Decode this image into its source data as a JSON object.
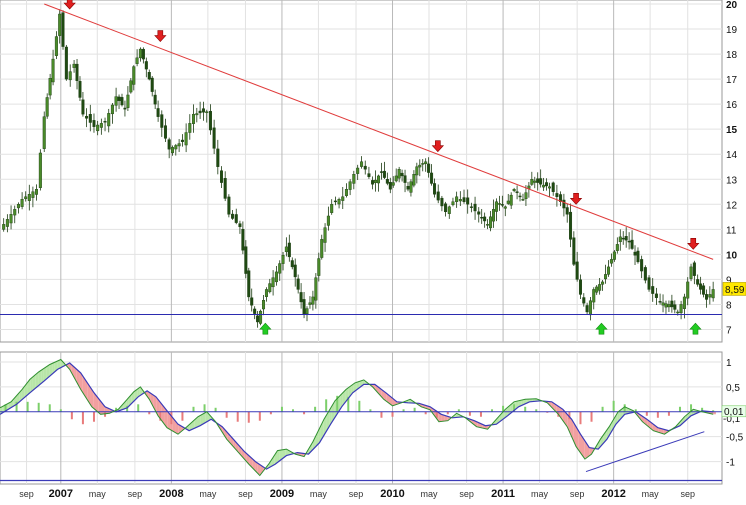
{
  "chart_data": [
    {
      "type": "candlestick",
      "panel": "price",
      "ylim": [
        6.5,
        20
      ],
      "y_ticks": [
        "7",
        "8",
        "9",
        "10",
        "11",
        "12",
        "13",
        "14",
        "15",
        "16",
        "17",
        "18",
        "19",
        "20"
      ],
      "y_ticks_bold": [
        "10",
        "15",
        "20"
      ],
      "x_labels": [
        {
          "t": 2006.69,
          "label": "sep",
          "year": false
        },
        {
          "t": 2007.0,
          "label": "2007",
          "year": true
        },
        {
          "t": 2007.33,
          "label": "may",
          "year": false
        },
        {
          "t": 2007.67,
          "label": "sep",
          "year": false
        },
        {
          "t": 2008.0,
          "label": "2008",
          "year": true
        },
        {
          "t": 2008.33,
          "label": "may",
          "year": false
        },
        {
          "t": 2008.67,
          "label": "sep",
          "year": false
        },
        {
          "t": 2009.0,
          "label": "2009",
          "year": true
        },
        {
          "t": 2009.33,
          "label": "may",
          "year": false
        },
        {
          "t": 2009.67,
          "label": "sep",
          "year": false
        },
        {
          "t": 2010.0,
          "label": "2010",
          "year": true
        },
        {
          "t": 2010.33,
          "label": "may",
          "year": false
        },
        {
          "t": 2010.67,
          "label": "sep",
          "year": false
        },
        {
          "t": 2011.0,
          "label": "2011",
          "year": true
        },
        {
          "t": 2011.33,
          "label": "may",
          "year": false
        },
        {
          "t": 2011.67,
          "label": "sep",
          "year": false
        },
        {
          "t": 2012.0,
          "label": "2012",
          "year": true
        },
        {
          "t": 2012.33,
          "label": "may",
          "year": false
        },
        {
          "t": 2012.67,
          "label": "sep",
          "year": false
        }
      ],
      "x_range": [
        2006.45,
        2012.98
      ],
      "price_path": [
        [
          2006.45,
          11.0
        ],
        [
          2006.55,
          11.6
        ],
        [
          2006.65,
          12.2
        ],
        [
          2006.78,
          12.6
        ],
        [
          2006.85,
          15.5
        ],
        [
          2006.93,
          17.8
        ],
        [
          2006.99,
          19.6
        ],
        [
          2007.05,
          17.0
        ],
        [
          2007.12,
          17.6
        ],
        [
          2007.2,
          15.6
        ],
        [
          2007.3,
          15.1
        ],
        [
          2007.4,
          15.3
        ],
        [
          2007.5,
          16.3
        ],
        [
          2007.58,
          15.8
        ],
        [
          2007.66,
          17.5
        ],
        [
          2007.72,
          18.2
        ],
        [
          2007.8,
          17.0
        ],
        [
          2007.88,
          15.5
        ],
        [
          2007.98,
          14.2
        ],
        [
          2008.1,
          14.5
        ],
        [
          2008.2,
          15.6
        ],
        [
          2008.32,
          15.7
        ],
        [
          2008.42,
          13.5
        ],
        [
          2008.52,
          11.6
        ],
        [
          2008.62,
          11.1
        ],
        [
          2008.7,
          8.3
        ],
        [
          2008.78,
          7.3
        ],
        [
          2008.86,
          8.6
        ],
        [
          2008.95,
          9.3
        ],
        [
          2009.04,
          10.3
        ],
        [
          2009.12,
          9.1
        ],
        [
          2009.2,
          7.6
        ],
        [
          2009.28,
          8.3
        ],
        [
          2009.36,
          10.6
        ],
        [
          2009.45,
          12.0
        ],
        [
          2009.55,
          12.3
        ],
        [
          2009.65,
          13.2
        ],
        [
          2009.72,
          13.7
        ],
        [
          2009.82,
          12.8
        ],
        [
          2009.9,
          13.3
        ],
        [
          2009.98,
          12.6
        ],
        [
          2010.06,
          13.4
        ],
        [
          2010.14,
          12.6
        ],
        [
          2010.22,
          13.5
        ],
        [
          2010.3,
          13.7
        ],
        [
          2010.38,
          12.4
        ],
        [
          2010.48,
          11.7
        ],
        [
          2010.58,
          12.3
        ],
        [
          2010.68,
          12.0
        ],
        [
          2010.78,
          11.6
        ],
        [
          2010.86,
          11.2
        ],
        [
          2010.94,
          12.1
        ],
        [
          2011.02,
          11.9
        ],
        [
          2011.1,
          12.6
        ],
        [
          2011.18,
          12.2
        ],
        [
          2011.26,
          13.0
        ],
        [
          2011.34,
          12.8
        ],
        [
          2011.42,
          12.7
        ],
        [
          2011.52,
          12.1
        ],
        [
          2011.58,
          11.6
        ],
        [
          2011.64,
          9.6
        ],
        [
          2011.7,
          8.4
        ],
        [
          2011.76,
          7.7
        ],
        [
          2011.82,
          8.6
        ],
        [
          2011.9,
          8.9
        ],
        [
          2011.98,
          9.8
        ],
        [
          2012.06,
          10.7
        ],
        [
          2012.14,
          10.5
        ],
        [
          2012.22,
          9.7
        ],
        [
          2012.32,
          8.6
        ],
        [
          2012.42,
          8.1
        ],
        [
          2012.5,
          8.0
        ],
        [
          2012.58,
          7.7
        ],
        [
          2012.64,
          8.3
        ],
        [
          2012.7,
          9.5
        ],
        [
          2012.76,
          8.8
        ],
        [
          2012.84,
          8.2
        ],
        [
          2012.9,
          8.6
        ]
      ],
      "last_value_label": "8,59",
      "resistance_line": {
        "from": [
          2006.85,
          20.0
        ],
        "to": [
          2012.9,
          9.8
        ],
        "color": "#e03c3c"
      },
      "support_line": {
        "y": 7.6,
        "color": "#2b2bb0"
      },
      "down_arrows": [
        {
          "t": 2007.08,
          "y": 20.0
        },
        {
          "t": 2007.9,
          "y": 18.7
        },
        {
          "t": 2010.41,
          "y": 14.3
        },
        {
          "t": 2011.66,
          "y": 12.2
        },
        {
          "t": 2012.72,
          "y": 10.4
        }
      ],
      "up_arrows": [
        {
          "t": 2008.85,
          "y": 7.05
        },
        {
          "t": 2011.89,
          "y": 7.05
        },
        {
          "t": 2012.74,
          "y": 7.05
        }
      ],
      "candle_up_color": "#4a8a2a",
      "candle_down_color": "#1f4a12",
      "grid": true
    },
    {
      "type": "area",
      "panel": "oscillator",
      "ylim": [
        -1.45,
        1.2
      ],
      "y_ticks": [
        "1",
        "0,5",
        "-0,5",
        "-1"
      ],
      "zero_label": "0,01",
      "zero_label_back": "-0,1",
      "fast_line": [
        [
          2006.45,
          0.08
        ],
        [
          2006.55,
          0.2
        ],
        [
          2006.65,
          0.45
        ],
        [
          2006.72,
          0.65
        ],
        [
          2006.8,
          0.8
        ],
        [
          2006.9,
          0.95
        ],
        [
          2007.0,
          1.05
        ],
        [
          2007.08,
          0.85
        ],
        [
          2007.18,
          0.45
        ],
        [
          2007.28,
          0.1
        ],
        [
          2007.36,
          -0.05
        ],
        [
          2007.44,
          -0.03
        ],
        [
          2007.52,
          0.05
        ],
        [
          2007.6,
          0.25
        ],
        [
          2007.66,
          0.4
        ],
        [
          2007.72,
          0.5
        ],
        [
          2007.8,
          0.25
        ],
        [
          2007.88,
          -0.08
        ],
        [
          2007.96,
          -0.32
        ],
        [
          2008.06,
          -0.45
        ],
        [
          2008.14,
          -0.3
        ],
        [
          2008.24,
          -0.1
        ],
        [
          2008.32,
          0.0
        ],
        [
          2008.4,
          -0.2
        ],
        [
          2008.5,
          -0.55
        ],
        [
          2008.6,
          -0.8
        ],
        [
          2008.7,
          -1.05
        ],
        [
          2008.8,
          -1.28
        ],
        [
          2008.88,
          -1.05
        ],
        [
          2008.96,
          -0.78
        ],
        [
          2009.04,
          -0.75
        ],
        [
          2009.12,
          -0.85
        ],
        [
          2009.2,
          -0.9
        ],
        [
          2009.28,
          -0.6
        ],
        [
          2009.38,
          -0.15
        ],
        [
          2009.48,
          0.22
        ],
        [
          2009.58,
          0.45
        ],
        [
          2009.66,
          0.58
        ],
        [
          2009.74,
          0.64
        ],
        [
          2009.82,
          0.5
        ],
        [
          2009.92,
          0.25
        ],
        [
          2010.0,
          0.12
        ],
        [
          2010.08,
          0.18
        ],
        [
          2010.16,
          0.25
        ],
        [
          2010.26,
          0.1
        ],
        [
          2010.34,
          0.04
        ],
        [
          2010.42,
          -0.2
        ],
        [
          2010.5,
          -0.18
        ],
        [
          2010.58,
          -0.03
        ],
        [
          2010.66,
          -0.12
        ],
        [
          2010.76,
          -0.3
        ],
        [
          2010.86,
          -0.35
        ],
        [
          2010.94,
          -0.15
        ],
        [
          2011.02,
          0.05
        ],
        [
          2011.1,
          0.2
        ],
        [
          2011.2,
          0.25
        ],
        [
          2011.3,
          0.26
        ],
        [
          2011.4,
          0.18
        ],
        [
          2011.5,
          -0.05
        ],
        [
          2011.58,
          -0.3
        ],
        [
          2011.66,
          -0.7
        ],
        [
          2011.74,
          -0.95
        ],
        [
          2011.8,
          -0.85
        ],
        [
          2011.88,
          -0.55
        ],
        [
          2011.96,
          -0.3
        ],
        [
          2012.04,
          0.0
        ],
        [
          2012.1,
          0.1
        ],
        [
          2012.18,
          0.02
        ],
        [
          2012.26,
          -0.2
        ],
        [
          2012.36,
          -0.38
        ],
        [
          2012.46,
          -0.45
        ],
        [
          2012.56,
          -0.3
        ],
        [
          2012.64,
          -0.1
        ],
        [
          2012.72,
          0.05
        ],
        [
          2012.8,
          0.0
        ],
        [
          2012.9,
          -0.05
        ]
      ],
      "slow_line": [
        [
          2006.45,
          -0.05
        ],
        [
          2006.6,
          0.15
        ],
        [
          2006.72,
          0.38
        ],
        [
          2006.85,
          0.62
        ],
        [
          2006.97,
          0.85
        ],
        [
          2007.08,
          0.98
        ],
        [
          2007.18,
          0.78
        ],
        [
          2007.3,
          0.38
        ],
        [
          2007.4,
          0.1
        ],
        [
          2007.5,
          0.0
        ],
        [
          2007.6,
          0.08
        ],
        [
          2007.7,
          0.3
        ],
        [
          2007.78,
          0.42
        ],
        [
          2007.86,
          0.3
        ],
        [
          2007.96,
          0.02
        ],
        [
          2008.06,
          -0.25
        ],
        [
          2008.16,
          -0.38
        ],
        [
          2008.26,
          -0.28
        ],
        [
          2008.36,
          -0.15
        ],
        [
          2008.46,
          -0.3
        ],
        [
          2008.56,
          -0.55
        ],
        [
          2008.66,
          -0.8
        ],
        [
          2008.76,
          -1.0
        ],
        [
          2008.86,
          -1.15
        ],
        [
          2008.94,
          -1.05
        ],
        [
          2009.04,
          -0.88
        ],
        [
          2009.14,
          -0.82
        ],
        [
          2009.24,
          -0.85
        ],
        [
          2009.34,
          -0.62
        ],
        [
          2009.44,
          -0.25
        ],
        [
          2009.54,
          0.1
        ],
        [
          2009.64,
          0.38
        ],
        [
          2009.74,
          0.55
        ],
        [
          2009.84,
          0.55
        ],
        [
          2009.94,
          0.38
        ],
        [
          2010.04,
          0.2
        ],
        [
          2010.14,
          0.18
        ],
        [
          2010.24,
          0.17
        ],
        [
          2010.34,
          0.1
        ],
        [
          2010.44,
          -0.05
        ],
        [
          2010.54,
          -0.12
        ],
        [
          2010.64,
          -0.1
        ],
        [
          2010.74,
          -0.18
        ],
        [
          2010.84,
          -0.28
        ],
        [
          2010.94,
          -0.25
        ],
        [
          2011.04,
          -0.08
        ],
        [
          2011.14,
          0.1
        ],
        [
          2011.24,
          0.2
        ],
        [
          2011.34,
          0.22
        ],
        [
          2011.44,
          0.2
        ],
        [
          2011.54,
          0.05
        ],
        [
          2011.62,
          -0.15
        ],
        [
          2011.7,
          -0.45
        ],
        [
          2011.78,
          -0.72
        ],
        [
          2011.86,
          -0.75
        ],
        [
          2011.94,
          -0.55
        ],
        [
          2012.02,
          -0.25
        ],
        [
          2012.1,
          -0.05
        ],
        [
          2012.2,
          0.0
        ],
        [
          2012.3,
          -0.15
        ],
        [
          2012.4,
          -0.32
        ],
        [
          2012.5,
          -0.38
        ],
        [
          2012.6,
          -0.28
        ],
        [
          2012.7,
          -0.08
        ],
        [
          2012.8,
          0.02
        ],
        [
          2012.9,
          0.0
        ]
      ],
      "histogram": [
        [
          2006.5,
          0.15
        ],
        [
          2006.6,
          0.2
        ],
        [
          2006.7,
          0.2
        ],
        [
          2006.8,
          0.18
        ],
        [
          2006.9,
          0.15
        ],
        [
          2007.0,
          0.05
        ],
        [
          2007.1,
          -0.15
        ],
        [
          2007.2,
          -0.25
        ],
        [
          2007.3,
          -0.2
        ],
        [
          2007.4,
          -0.1
        ],
        [
          2007.5,
          0.08
        ],
        [
          2007.6,
          0.12
        ],
        [
          2007.7,
          0.15
        ],
        [
          2007.8,
          -0.05
        ],
        [
          2007.9,
          -0.18
        ],
        [
          2008.0,
          -0.25
        ],
        [
          2008.1,
          -0.18
        ],
        [
          2008.2,
          0.1
        ],
        [
          2008.3,
          0.15
        ],
        [
          2008.4,
          0.08
        ],
        [
          2008.5,
          -0.12
        ],
        [
          2008.6,
          -0.2
        ],
        [
          2008.7,
          -0.22
        ],
        [
          2008.8,
          -0.18
        ],
        [
          2008.9,
          -0.05
        ],
        [
          2009.0,
          0.1
        ],
        [
          2009.1,
          0.05
        ],
        [
          2009.2,
          -0.05
        ],
        [
          2009.3,
          0.1
        ],
        [
          2009.4,
          0.25
        ],
        [
          2009.5,
          0.32
        ],
        [
          2009.6,
          0.3
        ],
        [
          2009.7,
          0.22
        ],
        [
          2009.8,
          0.05
        ],
        [
          2009.9,
          -0.12
        ],
        [
          2010.0,
          -0.1
        ],
        [
          2010.1,
          0.05
        ],
        [
          2010.2,
          0.08
        ],
        [
          2010.3,
          -0.05
        ],
        [
          2010.4,
          -0.12
        ],
        [
          2010.5,
          -0.05
        ],
        [
          2010.6,
          0.05
        ],
        [
          2010.7,
          -0.08
        ],
        [
          2010.8,
          -0.1
        ],
        [
          2010.9,
          0.05
        ],
        [
          2011.0,
          0.12
        ],
        [
          2011.1,
          0.15
        ],
        [
          2011.2,
          0.1
        ],
        [
          2011.3,
          0.05
        ],
        [
          2011.4,
          -0.02
        ],
        [
          2011.5,
          -0.1
        ],
        [
          2011.6,
          -0.15
        ],
        [
          2011.7,
          -0.25
        ],
        [
          2011.8,
          -0.2
        ],
        [
          2011.9,
          0.1
        ],
        [
          2012.0,
          0.22
        ],
        [
          2012.1,
          0.15
        ],
        [
          2012.2,
          0.05
        ],
        [
          2012.3,
          -0.08
        ],
        [
          2012.4,
          -0.12
        ],
        [
          2012.5,
          -0.08
        ],
        [
          2012.6,
          0.1
        ],
        [
          2012.7,
          0.15
        ],
        [
          2012.8,
          0.08
        ],
        [
          2012.9,
          0.03
        ]
      ],
      "divergence_line": {
        "from": [
          2011.75,
          -1.2
        ],
        "to": [
          2012.82,
          -0.4
        ]
      },
      "lower_bound_line": {
        "y": -1.38
      },
      "zero_line": {
        "y": 0.0
      },
      "colors": {
        "fast": "#2f8f2f",
        "slow": "#3a3ab8",
        "fill_up": "#b8e6a8",
        "fill_down": "#f2a0a0",
        "hist_up": "#7ccf6a",
        "hist_down": "#e87b7b",
        "guide": "#3a3ab8"
      },
      "grid": true
    }
  ]
}
